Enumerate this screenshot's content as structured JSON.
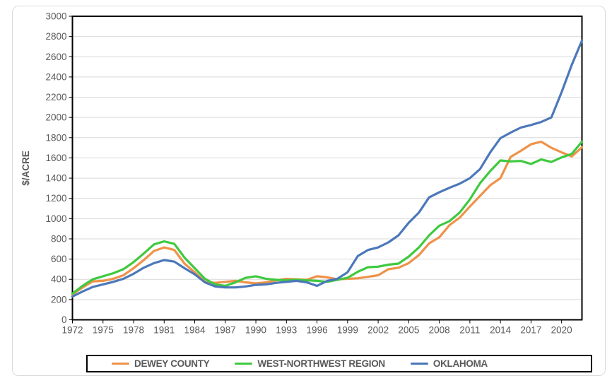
{
  "chart_data": {
    "type": "line",
    "title": "",
    "xlabel": "",
    "ylabel": "$/ACRE",
    "ylim": [
      0,
      3000
    ],
    "y_tick_step": 200,
    "grid": "horizontal",
    "legend_position": "bottom",
    "x": [
      1972,
      1973,
      1974,
      1975,
      1976,
      1977,
      1978,
      1979,
      1980,
      1981,
      1982,
      1983,
      1984,
      1985,
      1986,
      1987,
      1988,
      1989,
      1990,
      1991,
      1992,
      1993,
      1994,
      1995,
      1996,
      1997,
      1998,
      1999,
      2000,
      2001,
      2002,
      2003,
      2004,
      2005,
      2006,
      2007,
      2008,
      2009,
      2010,
      2011,
      2012,
      2013,
      2014,
      2015,
      2016,
      2017,
      2018,
      2019,
      2020,
      2021,
      2022
    ],
    "x_tick_labels": [
      "1972",
      "1975",
      "1978",
      "1981",
      "1984",
      "1987",
      "1990",
      "1993",
      "1996",
      "1999",
      "2002",
      "2005",
      "2008",
      "2011",
      "2014",
      "2017",
      "2020"
    ],
    "series": [
      {
        "name": "DEWEY COUNTY",
        "color": "#EF9249",
        "values": [
          250,
          320,
          380,
          385,
          405,
          440,
          510,
          590,
          680,
          715,
          690,
          555,
          470,
          375,
          365,
          375,
          385,
          370,
          360,
          370,
          390,
          405,
          400,
          395,
          430,
          420,
          400,
          405,
          410,
          425,
          440,
          500,
          515,
          560,
          640,
          755,
          815,
          935,
          1010,
          1120,
          1225,
          1330,
          1400,
          1610,
          1670,
          1735,
          1760,
          1700,
          1655,
          1615,
          1705
        ]
      },
      {
        "name": "WEST-NORTHWEST REGION",
        "color": "#3FC93F",
        "values": [
          260,
          335,
          400,
          430,
          460,
          500,
          570,
          655,
          745,
          775,
          750,
          615,
          510,
          405,
          350,
          335,
          370,
          415,
          430,
          405,
          395,
          390,
          395,
          390,
          385,
          375,
          395,
          415,
          475,
          520,
          525,
          545,
          555,
          625,
          715,
          835,
          930,
          975,
          1060,
          1190,
          1350,
          1470,
          1575,
          1565,
          1570,
          1540,
          1585,
          1560,
          1605,
          1640,
          1760
        ]
      },
      {
        "name": "OKLAHOMA",
        "color": "#4B78B9",
        "values": [
          230,
          280,
          325,
          350,
          375,
          405,
          455,
          515,
          560,
          590,
          575,
          510,
          450,
          370,
          330,
          320,
          320,
          330,
          345,
          350,
          365,
          375,
          385,
          370,
          335,
          385,
          405,
          470,
          630,
          690,
          715,
          765,
          835,
          960,
          1060,
          1210,
          1260,
          1305,
          1345,
          1400,
          1490,
          1655,
          1795,
          1850,
          1900,
          1925,
          1955,
          2000,
          2250,
          2520,
          2760
        ]
      }
    ]
  },
  "colors": {
    "background": "#FFFFFF",
    "frame_border": "#D9D9D9",
    "grid": "#D9D9D9",
    "axis": "#000000",
    "text": "#595959"
  }
}
